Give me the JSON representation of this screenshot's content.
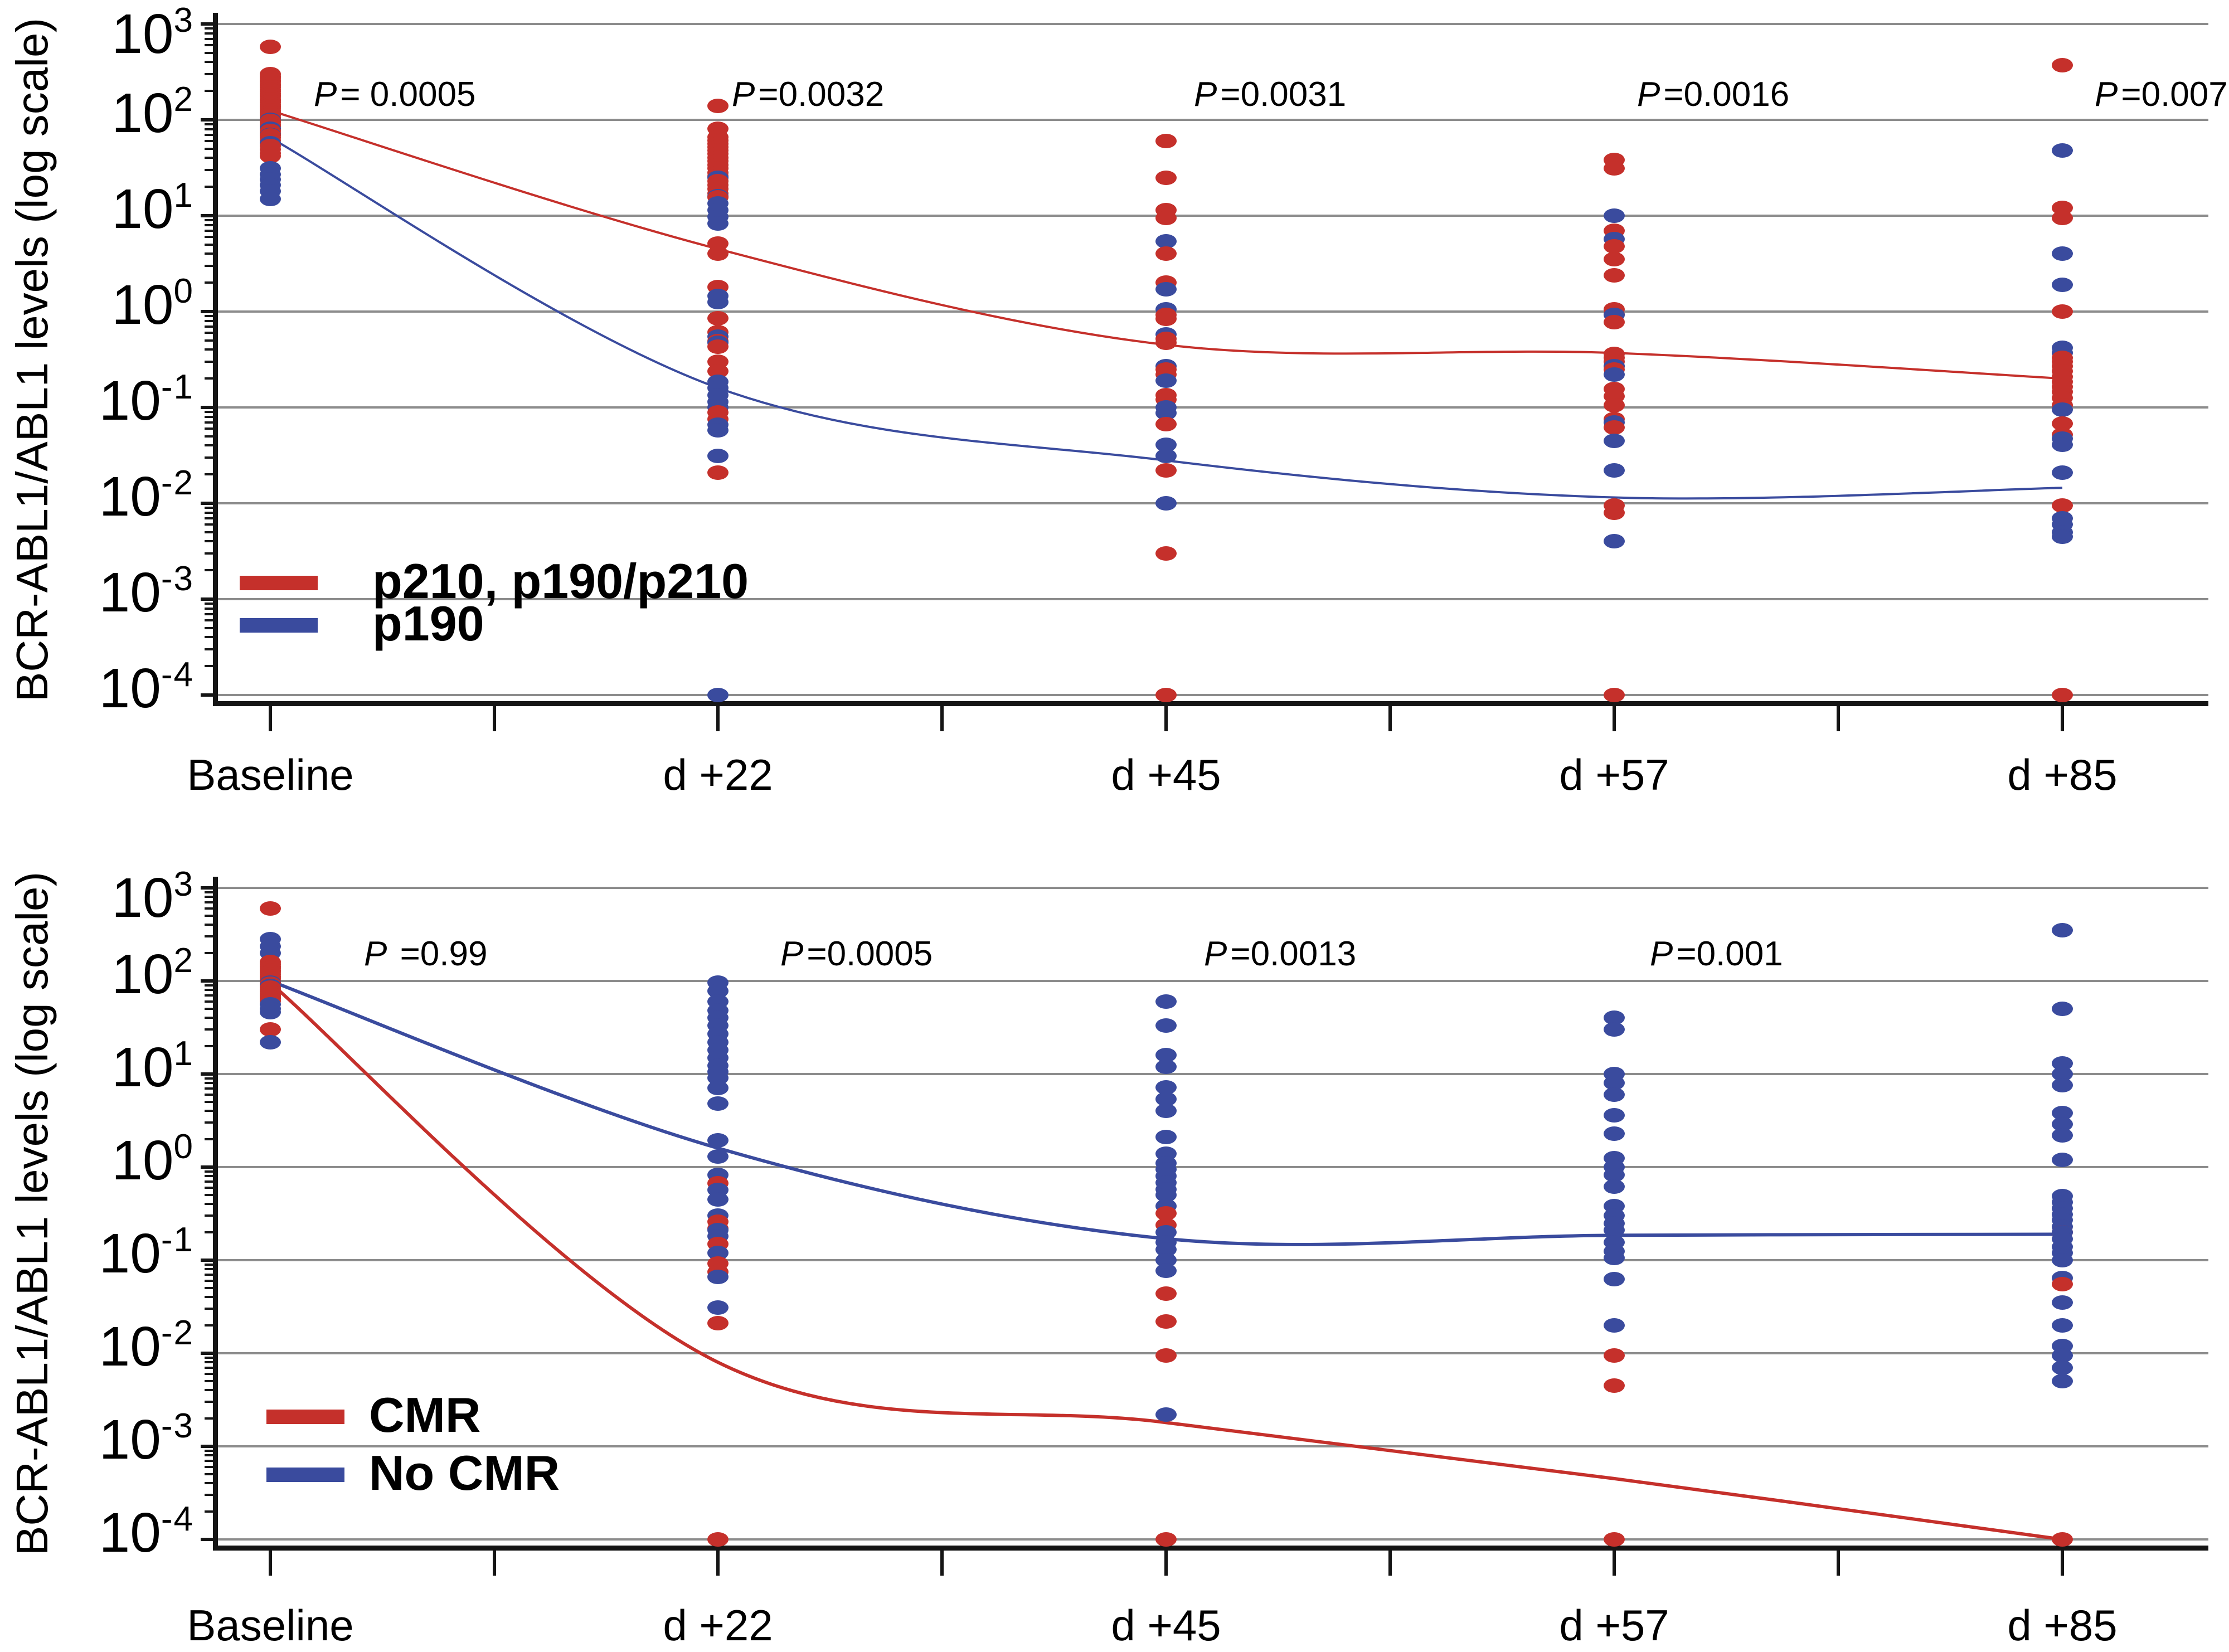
{
  "figure": {
    "colors": {
      "red": "#c5302b",
      "blue": "#3a4b9e",
      "grid": "#8c8c8c",
      "axis": "#151515"
    },
    "y_tick_base": "10",
    "y_tick_exponents": [
      "3",
      "2",
      "1",
      "0",
      "-1",
      "-2",
      "-3",
      "-4"
    ]
  },
  "chart_data": [
    {
      "type": "scatter",
      "log_scale": true,
      "ylim_log10": [
        -4,
        3
      ],
      "ylabel": "BCR-ABL1/ABL1 levels (log scale)",
      "x_categories": [
        "Baseline",
        "d +22",
        "d +45",
        "d +57",
        "d +85"
      ],
      "p_values": [
        {
          "prefix": "P",
          "text": "= 0.0005"
        },
        {
          "prefix": "P",
          "text": "=0.0032"
        },
        {
          "prefix": "P",
          "text": "=0.0031"
        },
        {
          "prefix": "P",
          "text": "=0.0016"
        },
        {
          "prefix": "P",
          "text": "=0.007"
        }
      ],
      "legend": [
        {
          "label": "p210, p190/p210",
          "color_key": "red"
        },
        {
          "label": "p190",
          "color_key": "blue"
        }
      ],
      "series": [
        {
          "name": "p210, p190/p210",
          "color_key": "red",
          "trend": [
            125,
            4.5,
            0.45,
            0.37,
            0.2
          ],
          "points": [
            [
              580,
              300,
              285,
              272,
              260,
              248,
              237,
              226,
              216,
              206,
              197,
              188,
              180,
              172,
              165,
              158,
              151,
              144,
              138,
              132,
              126,
              121,
              116,
              111,
              106,
              101,
              97,
              93,
              89,
              85,
              81,
              77,
              73,
              69,
              65,
              61,
              57,
              53,
              49,
              45,
              42
            ],
            [
              140,
              81,
              66,
              61,
              56,
              52,
              48,
              44,
              40,
              37,
              34,
              31,
              28,
              26,
              23,
              21,
              19,
              17,
              15.5,
              5.1,
              4.0,
              1.8,
              0.85,
              0.61,
              0.49,
              0.43,
              0.3,
              0.24,
              0.089,
              0.076,
              0.021
            ],
            [
              60,
              25,
              11.5,
              9.5,
              4.0,
              2.0,
              0.92,
              0.84,
              0.52,
              0.47,
              0.25,
              0.22,
              0.135,
              0.12,
              0.067,
              0.022,
              0.003,
              0.0001
            ],
            [
              38,
              31,
              7.0,
              4.8,
              3.5,
              2.4,
              1.06,
              0.93,
              0.78,
              0.36,
              0.33,
              0.3,
              0.27,
              0.25,
              0.155,
              0.13,
              0.105,
              0.075,
              0.062,
              0.0095,
              0.008,
              0.0001
            ],
            [
              370,
              12,
              9.5,
              1.0,
              0.33,
              0.3,
              0.27,
              0.24,
              0.21,
              0.185,
              0.165,
              0.145,
              0.125,
              0.105,
              0.068,
              0.052,
              0.0095,
              0.0001
            ]
          ]
        },
        {
          "name": "p190",
          "color_key": "blue",
          "trend": [
            65,
            0.16,
            0.028,
            0.0115,
            0.0145
          ],
          "points": [
            [
              100,
              81,
              70,
              57,
              31,
              27,
              24,
              21,
              18,
              15
            ],
            [
              25,
              16,
              13.5,
              11.5,
              9.8,
              8.3,
              1.45,
              1.25,
              0.55,
              0.47,
              0.185,
              0.16,
              0.135,
              0.115,
              0.1,
              0.066,
              0.058,
              0.031,
              0.0001
            ],
            [
              5.4,
              1.7,
              1.05,
              0.58,
              0.27,
              0.19,
              0.1,
              0.087,
              0.041,
              0.031,
              0.01
            ],
            [
              10,
              5.7,
              0.92,
              0.27,
              0.22,
              0.07,
              0.045,
              0.022,
              0.004
            ],
            [
              48,
              4.0,
              1.9,
              0.42,
              0.37,
              0.095,
              0.047,
              0.041,
              0.021,
              0.007,
              0.006,
              0.005,
              0.0045
            ]
          ]
        }
      ]
    },
    {
      "type": "scatter",
      "log_scale": true,
      "ylim_log10": [
        -4,
        3
      ],
      "ylabel": "BCR-ABL1/ABL1 levels (log scale)",
      "x_categories": [
        "Baseline",
        "d +22",
        "d +45",
        "d +57",
        "d +85"
      ],
      "p_values": [
        {
          "prefix": "P",
          "text": " =0.99"
        },
        {
          "prefix": "P",
          "text": "=0.0005"
        },
        {
          "prefix": "P",
          "text": "=0.0013"
        },
        {
          "prefix": "P",
          "text": "=0.001"
        }
      ],
      "legend": [
        {
          "label": "CMR",
          "color_key": "red"
        },
        {
          "label": "No CMR",
          "color_key": "blue"
        }
      ],
      "series": [
        {
          "name": "CMR",
          "color_key": "red",
          "trend": [
            95,
            0.008,
            0.0018,
            0.00045,
            0.0001
          ],
          "points": [
            [
              600,
              160,
              152,
              144,
              137,
              130,
              124,
              118,
              112,
              107,
              102,
              97,
              93,
              89,
              85,
              81,
              77,
              73,
              70,
              67,
              64,
              61,
              30
            ],
            [
              0.67,
              0.26,
              0.22,
              0.15,
              0.092,
              0.075,
              0.021,
              0.0001
            ],
            [
              0.32,
              0.24,
              0.044,
              0.022,
              0.0095,
              0.0001
            ],
            [
              0.0095,
              0.0045,
              0.0001
            ],
            [
              0.2,
              0.055,
              0.0001
            ]
          ]
        },
        {
          "name": "No CMR",
          "color_key": "blue",
          "trend": [
            100,
            1.6,
            0.17,
            0.185,
            0.19
          ],
          "points": [
            [
              280,
              235,
              200,
              96,
              88,
              56,
              50,
              46,
              22
            ],
            [
              96,
              78,
              60,
              48,
              40,
              33,
              27,
              22,
              18,
              15,
              12.3,
              10.5,
              9.1,
              7.1,
              4.8,
              1.95,
              1.3,
              0.82,
              0.57,
              0.45,
              0.3,
              0.21,
              0.18,
              0.12,
              0.066,
              0.031
            ],
            [
              60,
              33,
              16,
              12,
              7.2,
              5.4,
              4.0,
              2.1,
              1.4,
              1.1,
              0.95,
              0.8,
              0.68,
              0.58,
              0.5,
              0.38,
              0.2,
              0.155,
              0.13,
              0.1,
              0.077,
              0.0022
            ],
            [
              40,
              30,
              10,
              8,
              6,
              3.6,
              2.3,
              1.25,
              1.0,
              0.83,
              0.62,
              0.38,
              0.3,
              0.25,
              0.21,
              0.155,
              0.125,
              0.105,
              0.063,
              0.02
            ],
            [
              350,
              50,
              13,
              10,
              7.6,
              3.8,
              2.9,
              2.2,
              1.2,
              0.49,
              0.42,
              0.36,
              0.31,
              0.27,
              0.23,
              0.2,
              0.17,
              0.14,
              0.12,
              0.1,
              0.064,
              0.035,
              0.02,
              0.012,
              0.0095,
              0.007,
              0.005
            ]
          ]
        }
      ]
    }
  ]
}
